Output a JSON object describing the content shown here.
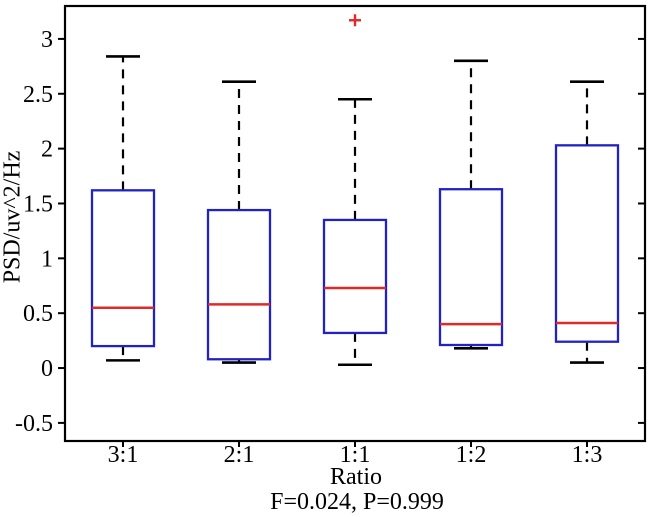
{
  "chart_data": {
    "type": "boxplot",
    "title": "",
    "xlabel": "Ratio",
    "ylabel": "PSD/uv^2/Hz",
    "annotation": "F=0.024, P=0.999",
    "categories": [
      "3:1",
      "2:1",
      "1:1",
      "1:2",
      "1:3"
    ],
    "series": [
      {
        "category": "3:1",
        "whisker_low": 0.07,
        "q1": 0.2,
        "median": 0.55,
        "q3": 1.62,
        "whisker_high": 2.84,
        "outliers": []
      },
      {
        "category": "2:1",
        "whisker_low": 0.05,
        "q1": 0.08,
        "median": 0.58,
        "q3": 1.44,
        "whisker_high": 2.61,
        "outliers": []
      },
      {
        "category": "1:1",
        "whisker_low": 0.03,
        "q1": 0.32,
        "median": 0.73,
        "q3": 1.35,
        "whisker_high": 2.45,
        "outliers": [
          3.17
        ]
      },
      {
        "category": "1:2",
        "whisker_low": 0.18,
        "q1": 0.21,
        "median": 0.4,
        "q3": 1.63,
        "whisker_high": 2.8,
        "outliers": []
      },
      {
        "category": "1:3",
        "whisker_low": 0.05,
        "q1": 0.24,
        "median": 0.41,
        "q3": 2.03,
        "whisker_high": 2.61,
        "outliers": []
      }
    ],
    "yticks": [
      -0.5,
      0,
      0.5,
      1,
      1.5,
      2,
      2.5,
      3
    ],
    "ylim": [
      -0.665,
      3.3
    ],
    "grid": false,
    "legend": "none",
    "colors": {
      "box": "#2222c2",
      "median": "#e02929",
      "outlier": "#e02929",
      "whisker": "#000000",
      "axis": "#000000",
      "background": "#ffffff"
    }
  }
}
